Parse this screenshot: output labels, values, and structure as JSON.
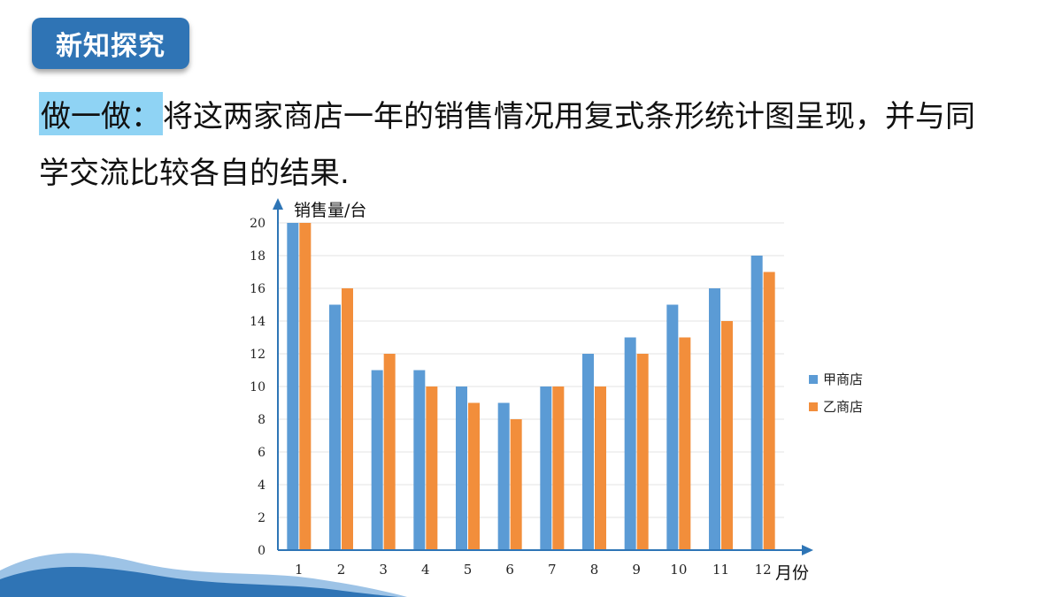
{
  "header": {
    "badge": "新知探究"
  },
  "instruction": {
    "label": "做一做：",
    "line1_rest": "将这两家商店一年的销售情况用复式条形统计图呈现，并与同",
    "line2": "学交流比较各自的结果."
  },
  "colors": {
    "accent": "#2f74b5",
    "highlight": "#8fd3f4",
    "series_a": "#5b9bd5",
    "series_b": "#f28e3b",
    "axis": "#2e75b6"
  },
  "chart_data": {
    "type": "bar",
    "xlabel": "月份",
    "ylabel": "销售量/台",
    "ylim": [
      0,
      20
    ],
    "yticks": [
      0,
      2,
      4,
      6,
      8,
      10,
      12,
      14,
      16,
      18,
      20
    ],
    "categories": [
      "1",
      "2",
      "3",
      "4",
      "5",
      "6",
      "7",
      "8",
      "9",
      "10",
      "11",
      "12"
    ],
    "series": [
      {
        "name": "甲商店",
        "color": "#5b9bd5",
        "values": [
          20,
          15,
          11,
          11,
          10,
          9,
          10,
          12,
          13,
          15,
          16,
          18
        ]
      },
      {
        "name": "乙商店",
        "color": "#f28e3b",
        "values": [
          20,
          16,
          12,
          10,
          9,
          8,
          10,
          10,
          12,
          13,
          14,
          17
        ]
      }
    ],
    "legend": "right",
    "grid": true
  }
}
